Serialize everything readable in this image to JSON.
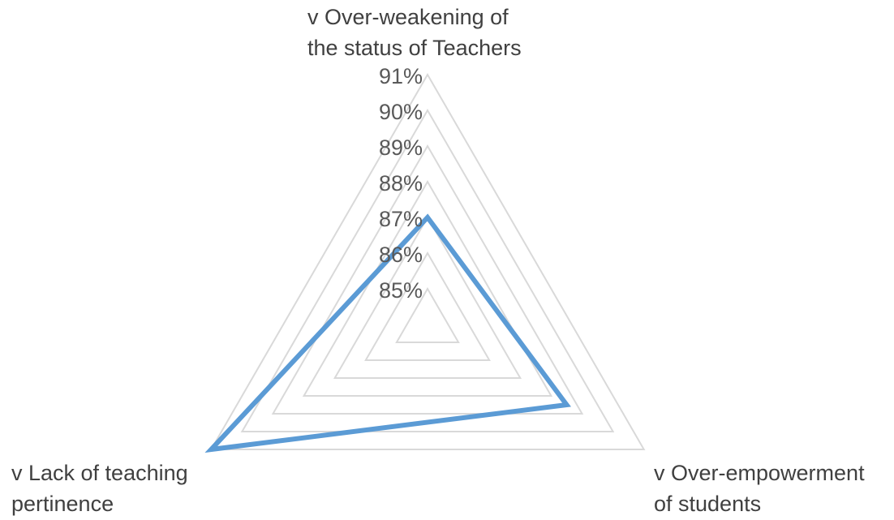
{
  "chart_data": {
    "type": "radar",
    "title": "",
    "categories": [
      [
        "v Over-weakening of",
        "the status of Teachers"
      ],
      [
        "v Over-empowerment",
        "of students"
      ],
      [
        "v Lack of teaching",
        "pertinence"
      ]
    ],
    "series": [
      {
        "values": [
          0.87,
          0.885,
          0.91
        ]
      }
    ],
    "r_axis": {
      "min": 0.84,
      "max": 0.91,
      "ticks": [
        0.85,
        0.86,
        0.87,
        0.88,
        0.89,
        0.9,
        0.91
      ],
      "tick_labels": [
        "85%",
        "86%",
        "87%",
        "88%",
        "89%",
        "90%",
        "91%"
      ]
    },
    "grid": true,
    "legend": "none",
    "colors": {
      "series": "#5b9bd5",
      "grid": "#d9d9d9",
      "text": "#595959",
      "category_text": "#404040"
    }
  }
}
